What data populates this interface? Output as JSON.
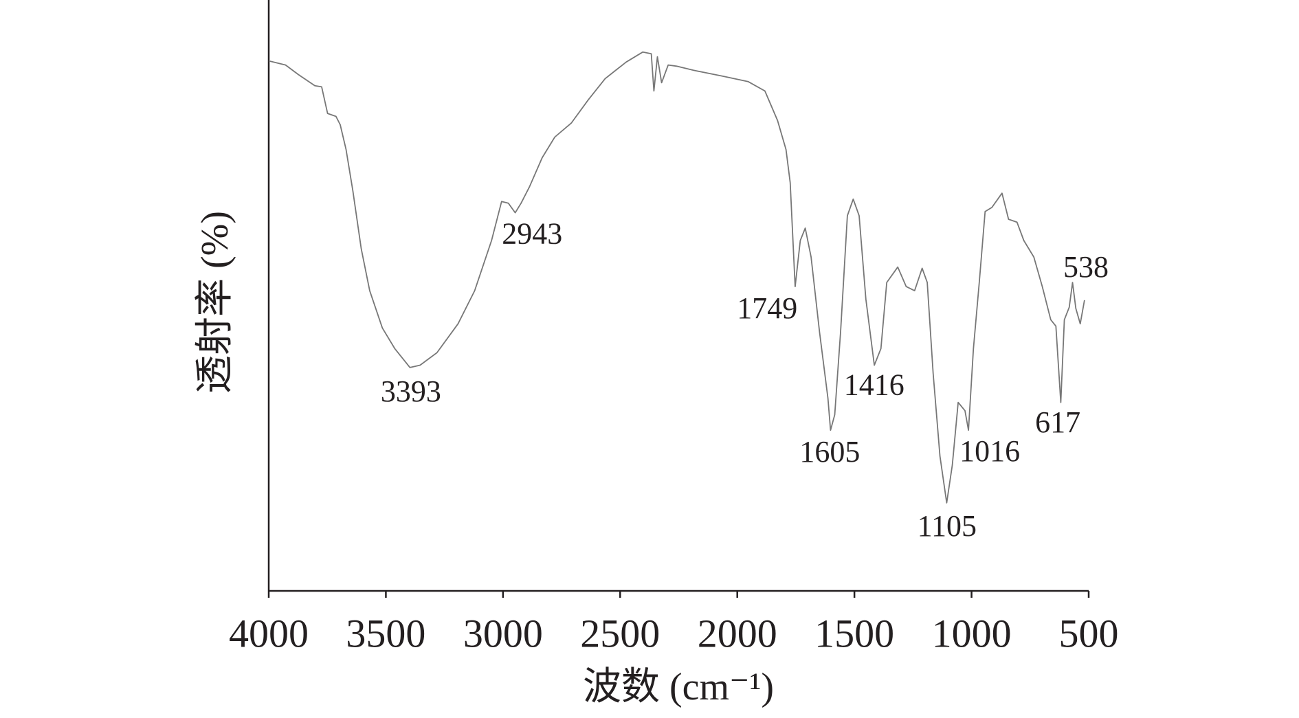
{
  "chart_data": {
    "type": "line",
    "x_label": "波数 (cm⁻¹)",
    "y_label": "透射率 (%)",
    "xlim": [
      4000,
      500
    ],
    "xticks": [
      4000,
      3500,
      3000,
      2500,
      2000,
      1500,
      1000,
      500
    ],
    "ylim": [
      0,
      100
    ],
    "grid": false,
    "color": "#777777",
    "x": [
      4000,
      3928,
      3874,
      3803,
      3774,
      3749,
      3713,
      3695,
      3670,
      3641,
      3605,
      3569,
      3515,
      3462,
      3397,
      3354,
      3282,
      3192,
      3121,
      3049,
      3006,
      2977,
      2948,
      2923,
      2887,
      2833,
      2779,
      2708,
      2636,
      2564,
      2474,
      2403,
      2367,
      2356,
      2341,
      2323,
      2295,
      2259,
      2187,
      2062,
      1954,
      1882,
      1828,
      1792,
      1774,
      1753,
      1731,
      1710,
      1685,
      1649,
      1613,
      1602,
      1584,
      1559,
      1530,
      1505,
      1480,
      1451,
      1415,
      1387,
      1362,
      1315,
      1279,
      1243,
      1211,
      1189,
      1164,
      1135,
      1106,
      1082,
      1057,
      1028,
      1013,
      992,
      967,
      942,
      913,
      870,
      842,
      806,
      777,
      734,
      698,
      662,
      640,
      619,
      604,
      583,
      569,
      555,
      536,
      518
    ],
    "values": [
      89.7,
      89.0,
      87.4,
      85.5,
      85.3,
      80.8,
      80.3,
      78.9,
      74.7,
      67.7,
      57.9,
      50.8,
      44.5,
      41.0,
      37.8,
      38.2,
      40.3,
      45.2,
      50.8,
      59.3,
      65.9,
      65.6,
      64.0,
      65.6,
      68.4,
      73.3,
      76.8,
      79.2,
      83.1,
      86.7,
      89.5,
      91.2,
      90.9,
      84.6,
      90.4,
      86.0,
      89.0,
      88.8,
      88.1,
      87.1,
      86.2,
      84.6,
      79.6,
      74.7,
      69.1,
      51.5,
      59.3,
      61.4,
      56.5,
      43.8,
      32.6,
      27.2,
      29.8,
      43.8,
      63.5,
      66.3,
      63.5,
      49.4,
      38.2,
      41.0,
      52.2,
      54.8,
      51.5,
      50.8,
      54.6,
      52.2,
      36.8,
      22.8,
      14.9,
      21.3,
      31.9,
      30.5,
      27.2,
      41.0,
      52.2,
      64.2,
      64.9,
      67.3,
      62.9,
      62.4,
      59.3,
      56.5,
      51.5,
      45.9,
      44.8,
      31.9,
      45.9,
      48.0,
      52.2,
      47.8,
      45.2,
      49.2
    ],
    "annotations": [
      {
        "x": 3393,
        "y": 37.8
      },
      {
        "x": 2943,
        "y": 64.0
      },
      {
        "x": 1749,
        "y": 51.5
      },
      {
        "x": 1605,
        "y": 27.2
      },
      {
        "x": 1416,
        "y": 38.2
      },
      {
        "x": 1105,
        "y": 14.9
      },
      {
        "x": 1016,
        "y": 27.2
      },
      {
        "x": 617,
        "y": 31.9
      },
      {
        "x": 538,
        "y": 52.2
      }
    ]
  }
}
